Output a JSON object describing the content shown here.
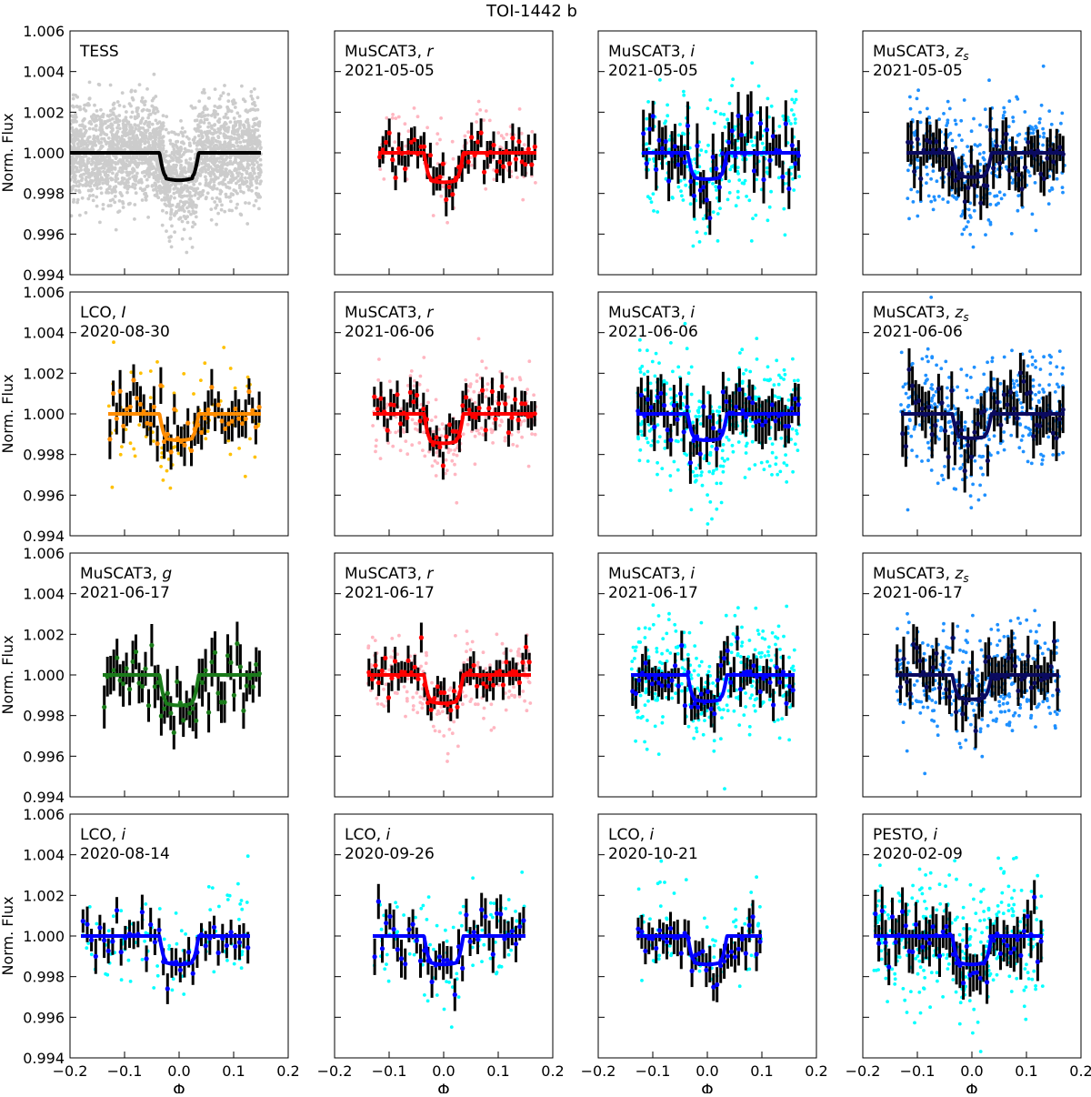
{
  "figure": {
    "title": "TOI-1442 b",
    "xlabel": "Φ",
    "ylabel": "Norm. Flux"
  },
  "chart_data": {
    "type": "scatter",
    "title": "TOI-1442 b",
    "xlabel": "Φ",
    "ylabel": "Norm. Flux",
    "xlim": [
      -0.2,
      0.2
    ],
    "ylim": [
      0.994,
      1.006
    ],
    "xticks": [
      -0.2,
      -0.1,
      0.0,
      0.1,
      0.2
    ],
    "xtick_labels": [
      "−0.2",
      "−0.1",
      "0.0",
      "0.1",
      "0.2"
    ],
    "yticks": [
      0.994,
      0.996,
      0.998,
      1.0,
      1.002,
      1.004,
      1.006
    ],
    "ytick_labels": [
      "0.994",
      "0.996",
      "0.998",
      "1.000",
      "1.002",
      "1.004",
      "1.006"
    ],
    "model": {
      "description": "transit model",
      "ingress_phase": -0.036,
      "egress_phase": 0.036
    },
    "panels": [
      {
        "row": 0,
        "col": 0,
        "instrument": "TESS",
        "filter": "",
        "date": "",
        "phase_range": [
          -0.2,
          0.15
        ],
        "depth": 0.00135,
        "model_color": "#000000",
        "raw_color": "#cccccc",
        "bin_color": "",
        "n_raw": 2500,
        "raw_scatter": 0.0012,
        "n_bins": 0
      },
      {
        "row": 0,
        "col": 1,
        "instrument": "MuSCAT3, ",
        "filter": "r",
        "date": "2021-05-05",
        "phase_range": [
          -0.12,
          0.17
        ],
        "depth": 0.00145,
        "model_color": "#ff0000",
        "raw_color": "#ffb6c1",
        "bin_color": "#ff0000",
        "n_raw": 120,
        "raw_scatter": 0.0011,
        "n_bins": 50
      },
      {
        "row": 0,
        "col": 2,
        "instrument": "MuSCAT3, ",
        "filter": "i",
        "date": "2021-05-05",
        "phase_range": [
          -0.12,
          0.17
        ],
        "depth": 0.0013,
        "model_color": "#0000ff",
        "raw_color": "#00ffff",
        "bin_color": "#0000ff",
        "n_raw": 280,
        "raw_scatter": 0.0016,
        "n_bins": 50
      },
      {
        "row": 0,
        "col": 3,
        "instrument": "MuSCAT3, ",
        "filter": "zs",
        "date": "2021-05-05",
        "phase_range": [
          -0.12,
          0.17
        ],
        "depth": 0.0012,
        "model_color": "#0a0a60",
        "raw_color": "#1e90ff",
        "bin_color": "#0a0a60",
        "n_raw": 330,
        "raw_scatter": 0.0015,
        "n_bins": 50
      },
      {
        "row": 1,
        "col": 0,
        "instrument": "LCO, ",
        "filter": "I",
        "date": "2020-08-30",
        "phase_range": [
          -0.13,
          0.15
        ],
        "depth": 0.0013,
        "model_color": "#ff8c00",
        "raw_color": "#ffc000",
        "bin_color": "#ff8c00",
        "n_raw": 80,
        "raw_scatter": 0.0014,
        "n_bins": 45
      },
      {
        "row": 1,
        "col": 1,
        "instrument": "MuSCAT3, ",
        "filter": "r",
        "date": "2021-06-06",
        "phase_range": [
          -0.13,
          0.17
        ],
        "depth": 0.00145,
        "model_color": "#ff0000",
        "raw_color": "#ffb6c1",
        "bin_color": "#ff0000",
        "n_raw": 220,
        "raw_scatter": 0.0011,
        "n_bins": 50
      },
      {
        "row": 1,
        "col": 2,
        "instrument": "MuSCAT3, ",
        "filter": "i",
        "date": "2021-06-06",
        "phase_range": [
          -0.13,
          0.17
        ],
        "depth": 0.0013,
        "model_color": "#0000ff",
        "raw_color": "#00ffff",
        "bin_color": "#0000ff",
        "n_raw": 350,
        "raw_scatter": 0.0016,
        "n_bins": 50
      },
      {
        "row": 1,
        "col": 3,
        "instrument": "MuSCAT3, ",
        "filter": "zs",
        "date": "2021-06-06",
        "phase_range": [
          -0.13,
          0.17
        ],
        "depth": 0.0012,
        "model_color": "#0a0a60",
        "raw_color": "#1e90ff",
        "bin_color": "#0a0a60",
        "n_raw": 350,
        "raw_scatter": 0.0016,
        "n_bins": 50
      },
      {
        "row": 2,
        "col": 0,
        "instrument": "MuSCAT3, ",
        "filter": "g",
        "date": "2021-06-17",
        "phase_range": [
          -0.14,
          0.15
        ],
        "depth": 0.0015,
        "model_color": "#1a7a1a",
        "raw_color": "#1a7a1a",
        "bin_color": "#1a7a1a",
        "n_raw": 0,
        "raw_scatter": 0.0016,
        "n_bins": 50
      },
      {
        "row": 2,
        "col": 1,
        "instrument": "MuSCAT3, ",
        "filter": "r",
        "date": "2021-06-17",
        "phase_range": [
          -0.14,
          0.16
        ],
        "depth": 0.0014,
        "model_color": "#ff0000",
        "raw_color": "#ffb6c1",
        "bin_color": "#ff0000",
        "n_raw": 230,
        "raw_scatter": 0.001,
        "n_bins": 50
      },
      {
        "row": 2,
        "col": 2,
        "instrument": "MuSCAT3, ",
        "filter": "i",
        "date": "2021-06-17",
        "phase_range": [
          -0.14,
          0.16
        ],
        "depth": 0.0013,
        "model_color": "#0000ff",
        "raw_color": "#00ffff",
        "bin_color": "#0000ff",
        "n_raw": 330,
        "raw_scatter": 0.0013,
        "n_bins": 50
      },
      {
        "row": 2,
        "col": 3,
        "instrument": "MuSCAT3, ",
        "filter": "zs",
        "date": "2021-06-17",
        "phase_range": [
          -0.14,
          0.16
        ],
        "depth": 0.0012,
        "model_color": "#0a0a60",
        "raw_color": "#1e90ff",
        "bin_color": "#0a0a60",
        "n_raw": 330,
        "raw_scatter": 0.0015,
        "n_bins": 50
      },
      {
        "row": 3,
        "col": 0,
        "instrument": "LCO, ",
        "filter": "i",
        "date": "2020-08-14",
        "phase_range": [
          -0.18,
          0.13
        ],
        "depth": 0.0014,
        "model_color": "#0000ff",
        "raw_color": "#00ffff",
        "bin_color": "#0000ff",
        "n_raw": 100,
        "raw_scatter": 0.0012,
        "n_bins": 40
      },
      {
        "row": 3,
        "col": 1,
        "instrument": "LCO, ",
        "filter": "i",
        "date": "2020-09-26",
        "phase_range": [
          -0.13,
          0.15
        ],
        "depth": 0.0014,
        "model_color": "#0000ff",
        "raw_color": "#00ffff",
        "bin_color": "#0000ff",
        "n_raw": 100,
        "raw_scatter": 0.0013,
        "n_bins": 40
      },
      {
        "row": 3,
        "col": 2,
        "instrument": "LCO, ",
        "filter": "i",
        "date": "2020-10-21",
        "phase_range": [
          -0.13,
          0.1
        ],
        "depth": 0.0014,
        "model_color": "#0000ff",
        "raw_color": "#00ffff",
        "bin_color": "#0000ff",
        "n_raw": 80,
        "raw_scatter": 0.0012,
        "n_bins": 35
      },
      {
        "row": 3,
        "col": 3,
        "instrument": "PESTO, ",
        "filter": "i",
        "date": "2020-02-09",
        "phase_range": [
          -0.18,
          0.13
        ],
        "depth": 0.0014,
        "model_color": "#0000ff",
        "raw_color": "#00ffff",
        "bin_color": "#0000ff",
        "n_raw": 350,
        "raw_scatter": 0.0016,
        "n_bins": 50
      }
    ]
  }
}
